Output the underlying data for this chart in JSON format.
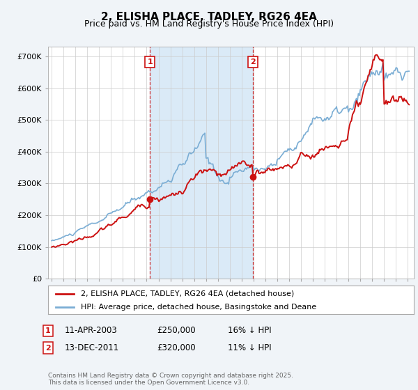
{
  "title": "2, ELISHA PLACE, TADLEY, RG26 4EA",
  "subtitle": "Price paid vs. HM Land Registry's House Price Index (HPI)",
  "legend_line1": "2, ELISHA PLACE, TADLEY, RG26 4EA (detached house)",
  "legend_line2": "HPI: Average price, detached house, Basingstoke and Deane",
  "annotation1": {
    "label": "1",
    "date": "11-APR-2003",
    "price": "£250,000",
    "note": "16% ↓ HPI",
    "x_year": 2003.28
  },
  "annotation2": {
    "label": "2",
    "date": "13-DEC-2011",
    "price": "£320,000",
    "note": "11% ↓ HPI",
    "x_year": 2011.96
  },
  "footnote": "Contains HM Land Registry data © Crown copyright and database right 2025.\nThis data is licensed under the Open Government Licence v3.0.",
  "hpi_color": "#7aadd4",
  "price_color": "#cc1111",
  "vline_color": "#cc1111",
  "shade_color": "#daeaf7",
  "background_color": "#f0f4f8",
  "plot_bg": "#ffffff",
  "grid_color": "#cccccc",
  "ylim": [
    0,
    730000
  ],
  "yticks": [
    0,
    100000,
    200000,
    300000,
    400000,
    500000,
    600000,
    700000
  ],
  "ytick_labels": [
    "£0",
    "£100K",
    "£200K",
    "£300K",
    "£400K",
    "£500K",
    "£600K",
    "£700K"
  ],
  "xlim": [
    1994.7,
    2025.5
  ],
  "xtick_years": [
    1995,
    1996,
    1997,
    1998,
    1999,
    2000,
    2001,
    2002,
    2003,
    2004,
    2005,
    2006,
    2007,
    2008,
    2009,
    2010,
    2011,
    2012,
    2013,
    2014,
    2015,
    2016,
    2017,
    2018,
    2019,
    2020,
    2021,
    2022,
    2023,
    2024,
    2025
  ]
}
